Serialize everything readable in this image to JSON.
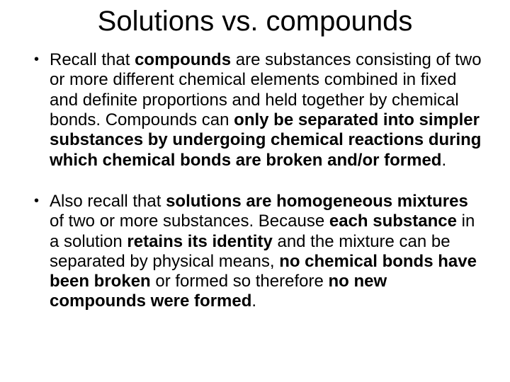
{
  "background_color": "#ffffff",
  "text_color": "#000000",
  "title": {
    "text": "Solutions vs. compounds",
    "fontsize": 40,
    "weight": "normal",
    "align": "center"
  },
  "body_fontsize": 24,
  "bullets": [
    {
      "p1": "Recall that ",
      "b1": "compounds",
      "p2": " are substances consisting of two or more different chemical elements combined in fixed and definite proportions and held together by chemical bonds.  Compounds can ",
      "b2": "only be separated into simpler substances by undergoing chemical reactions during which chemical bonds are broken and/or formed",
      "p3": "."
    },
    {
      "p1": "Also recall that ",
      "b1": "solutions are homogeneous mixtures",
      "p2": " of two or more substances. Because ",
      "b2": "each substance",
      "p3": " in a solution ",
      "b3": "retains its identity",
      "p4": " and the mixture can be separated by physical means, ",
      "b4": "no chemical bonds have been broken",
      "p5": " or formed so therefore ",
      "b5": "no new compounds were formed",
      "p6": "."
    }
  ]
}
